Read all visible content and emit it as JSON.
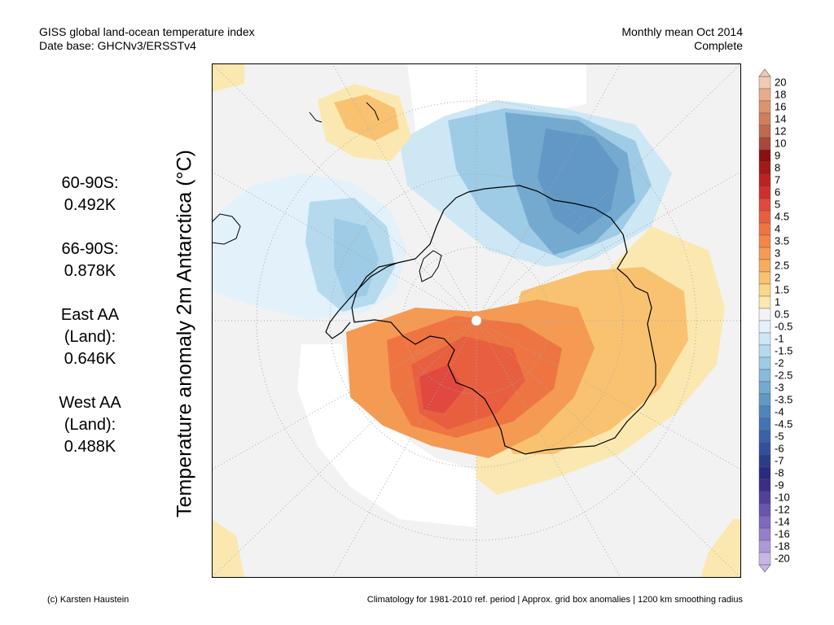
{
  "header": {
    "title": "GISS global land-ocean temperature index",
    "database": "Date base: GHCNv3/ERSSTv4",
    "period": "Monthly mean Oct 2014",
    "status": "Complete"
  },
  "stats": [
    {
      "line1": "60-90S:",
      "line2": "",
      "value": "0.492K"
    },
    {
      "line1": "66-90S:",
      "line2": "",
      "value": "0.878K"
    },
    {
      "line1": "East AA",
      "line2": "(Land):",
      "value": "0.646K"
    },
    {
      "line1": "West AA",
      "line2": "(Land):",
      "value": "0.488K"
    }
  ],
  "axis_label": "Temperature anomaly 2m Antarctica (°C)",
  "colorbar": {
    "labels": [
      "20",
      "18",
      "16",
      "14",
      "12",
      "10",
      "9",
      "8",
      "7",
      "6",
      "5",
      "4.5",
      "4",
      "3.5",
      "3",
      "2.5",
      "2",
      "1.5",
      "1",
      "0.5",
      "-0.5",
      "-1",
      "-1.5",
      "-2",
      "-2.5",
      "-3",
      "-3.5",
      "-4",
      "-4.5",
      "-5",
      "-6",
      "-7",
      "-8",
      "-9",
      "-10",
      "-12",
      "-14",
      "-16",
      "-18",
      "-20"
    ],
    "colors": [
      "#f2c9b3",
      "#e8ab8c",
      "#dc9470",
      "#cf7f5c",
      "#bf6a4c",
      "#a84838",
      "#8c1010",
      "#a31818",
      "#bd2222",
      "#d12e2e",
      "#e04840",
      "#e85f40",
      "#ee7542",
      "#f28748",
      "#f59a52",
      "#f7ad5e",
      "#f9c270",
      "#fad889",
      "#fbe8b0",
      "#f3f3f3",
      "#e3f1fb",
      "#cde7f5",
      "#b5daee",
      "#9ecbe5",
      "#88bbdb",
      "#74aad0",
      "#6198c5",
      "#5085bb",
      "#4373b2",
      "#3a62a8",
      "#334f9c",
      "#2c3c8c",
      "#2a2a7e",
      "#3a2f85",
      "#53409a",
      "#6a54ae",
      "#7f69be",
      "#957fcb",
      "#ac99d8",
      "#c6b7e6"
    ]
  },
  "footer": {
    "credit": "(c) Karsten Haustein",
    "note": "Climatology for 1981-2010 ref. period | Approx. grid box anomalies | 1200 km smoothing radius"
  }
}
